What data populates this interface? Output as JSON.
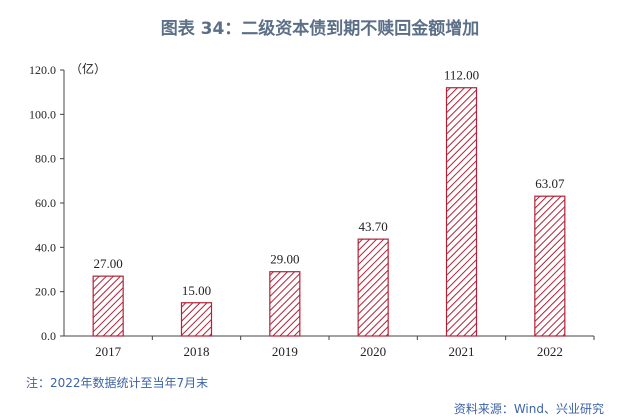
{
  "title": "图表 34：二级资本债到期不赎回金额增加",
  "unit_label": "（亿）",
  "note": "注：2022年数据统计至当年7月末",
  "source": "资料来源：Wind、兴业研究",
  "colors": {
    "bar_stroke": "#b22237",
    "hatch": "#b22237",
    "title": "#5b7088",
    "note": "#3c64a8"
  },
  "chart_data": {
    "type": "bar",
    "categories": [
      "2017",
      "2018",
      "2019",
      "2020",
      "2021",
      "2022"
    ],
    "values": [
      27.0,
      15.0,
      29.0,
      43.7,
      112.0,
      63.07
    ],
    "data_labels": [
      "27.00",
      "15.00",
      "29.00",
      "43.70",
      "112.00",
      "63.07"
    ],
    "yticks": [
      "0.0",
      "20.0",
      "40.0",
      "60.0",
      "80.0",
      "100.0",
      "120.0"
    ],
    "ylim": [
      0,
      120
    ],
    "ylabel": "（亿）",
    "xlabel": "",
    "fill": "diagonal-hatch",
    "grid": false
  }
}
